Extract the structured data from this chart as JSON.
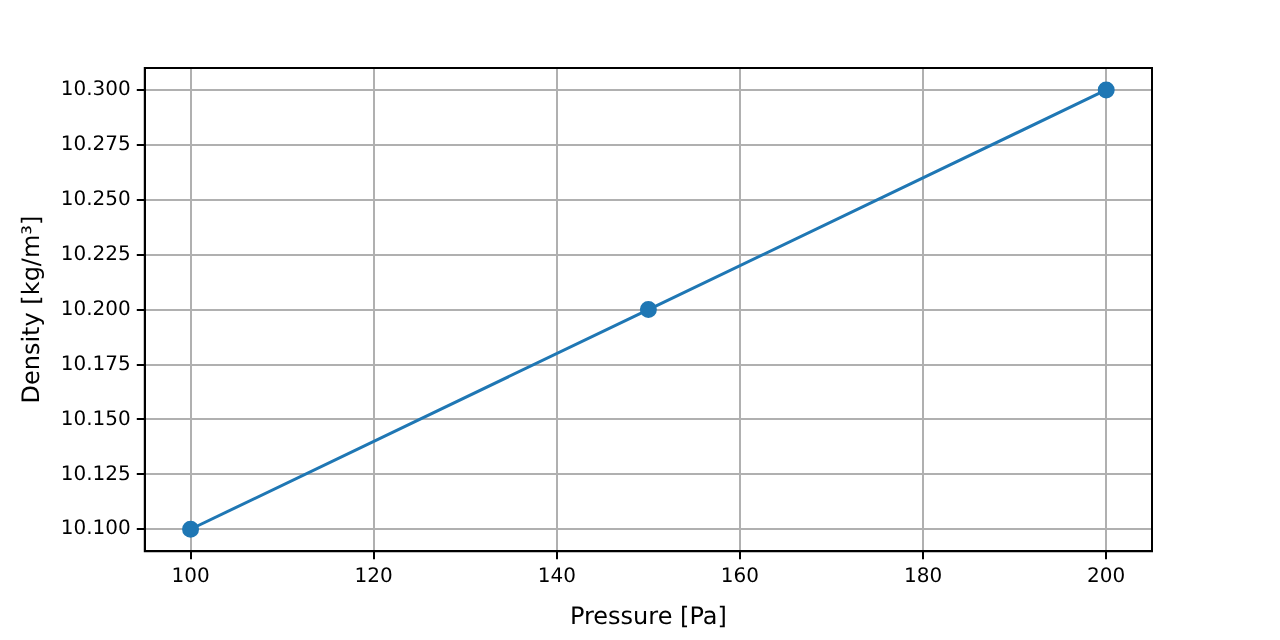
{
  "chart_data": {
    "type": "line",
    "xlabel": "Pressure [Pa]",
    "ylabel": "Density [kg/m³]",
    "x": [
      100,
      150,
      200
    ],
    "series": [
      {
        "color": "#1f77b4",
        "values": [
          10.1,
          10.2,
          10.3
        ]
      }
    ],
    "xlim": [
      95,
      205
    ],
    "xticks": [
      100,
      120,
      140,
      160,
      180,
      200
    ],
    "ylim": [
      10.09,
      10.31
    ],
    "yticks": [
      {
        "value": 10.1,
        "label": "10.100"
      },
      {
        "value": 10.125,
        "label": "10.125"
      },
      {
        "value": 10.15,
        "label": "10.150"
      },
      {
        "value": 10.175,
        "label": "10.175"
      },
      {
        "value": 10.2,
        "label": "10.200"
      },
      {
        "value": 10.225,
        "label": "10.225"
      },
      {
        "value": 10.25,
        "label": "10.250"
      },
      {
        "value": 10.275,
        "label": "10.275"
      },
      {
        "value": 10.3,
        "label": "10.300"
      }
    ],
    "grid": true,
    "marker": "circle",
    "line_style": "solid"
  }
}
